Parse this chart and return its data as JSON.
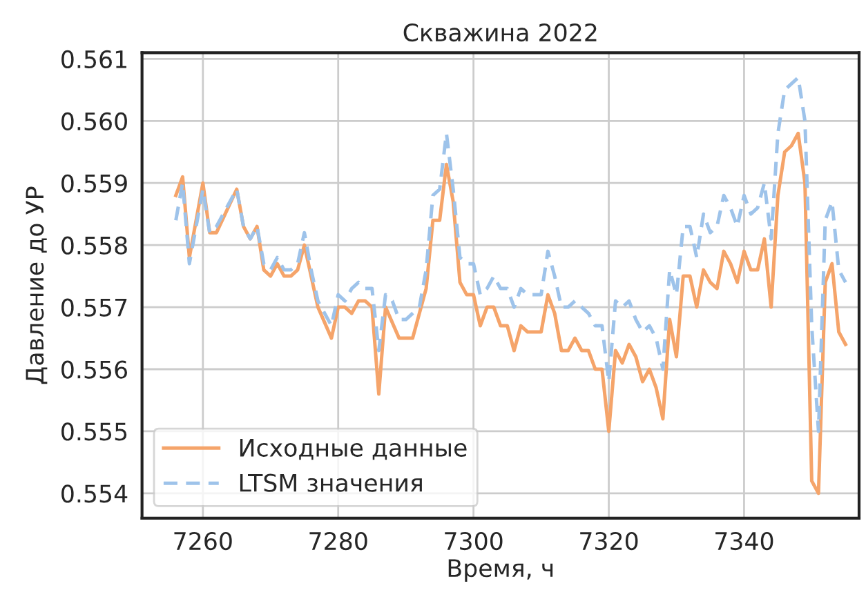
{
  "chart_data": {
    "type": "line",
    "title": "Скважина 2022",
    "xlabel": "Время, ч",
    "ylabel": "Давление до УР",
    "xlim": [
      7251,
      7357
    ],
    "xticks": [
      7260,
      7280,
      7300,
      7320,
      7340
    ],
    "ylim": [
      0.5536,
      0.5611
    ],
    "yticks": [
      0.554,
      0.555,
      0.556,
      0.557,
      0.558,
      0.559,
      {
        "value": 0.56,
        "label": "0.560"
      },
      0.561
    ],
    "grid": true,
    "legend": "bottom left",
    "series": [
      {
        "name": "Исходные данные",
        "color": "#f5a46a",
        "line_style": "solid",
        "x": [
          7256,
          7257,
          7258,
          7260,
          7261,
          7262,
          7265,
          7266,
          7267,
          7268,
          7269,
          7270,
          7271,
          7272,
          7273,
          7274,
          7275,
          7276,
          7277,
          7279,
          7280,
          7281,
          7282,
          7283,
          7284,
          7285,
          7286,
          7287,
          7289,
          7290,
          7291,
          7293,
          7294,
          7295,
          7296,
          7297,
          7298,
          7299,
          7300,
          7301,
          7302,
          7303,
          7304,
          7305,
          7306,
          7307,
          7308,
          7309,
          7310,
          7311,
          7312,
          7313,
          7314,
          7315,
          7316,
          7317,
          7318,
          7319,
          7320,
          7321,
          7322,
          7323,
          7324,
          7325,
          7326,
          7327,
          7328,
          7329,
          7330,
          7331,
          7332,
          7333,
          7334,
          7335,
          7336,
          7337,
          7338,
          7339,
          7340,
          7341,
          7342,
          7343,
          7344,
          7345,
          7346,
          7347,
          7348,
          7349,
          7350,
          7351,
          7352,
          7353,
          7354,
          7355
        ],
        "values": [
          0.5588,
          0.5591,
          0.5578,
          0.559,
          0.5582,
          0.5582,
          0.5589,
          0.5583,
          0.5581,
          0.5583,
          0.5576,
          0.5575,
          0.5577,
          0.5575,
          0.5575,
          0.5576,
          0.558,
          0.5575,
          0.557,
          0.5565,
          0.557,
          0.557,
          0.5569,
          0.5571,
          0.5571,
          0.557,
          0.5556,
          0.557,
          0.5565,
          0.5565,
          0.5565,
          0.5573,
          0.5584,
          0.5584,
          0.5593,
          0.5587,
          0.5574,
          0.5572,
          0.5572,
          0.5567,
          0.557,
          0.557,
          0.5567,
          0.5567,
          0.5563,
          0.5567,
          0.5566,
          0.5566,
          0.5566,
          0.5572,
          0.5569,
          0.5563,
          0.5563,
          0.5565,
          0.5563,
          0.5563,
          0.556,
          0.556,
          0.555,
          0.5563,
          0.5561,
          0.5564,
          0.5562,
          0.5558,
          0.556,
          0.5557,
          0.5552,
          0.5568,
          0.5562,
          0.5575,
          0.5575,
          0.557,
          0.5576,
          0.5574,
          0.5573,
          0.5579,
          0.5577,
          0.5574,
          0.5579,
          0.5576,
          0.5576,
          0.5581,
          0.557,
          0.5588,
          0.5595,
          0.5596,
          0.5598,
          0.559,
          0.5542,
          0.554,
          0.5574,
          0.5577,
          0.5566,
          0.5564
        ]
      },
      {
        "name": "LTSM значения",
        "color": "#9ec3ea",
        "line_style": "dashed",
        "x": [
          7256,
          7257,
          7258,
          7260,
          7261,
          7262,
          7265,
          7266,
          7267,
          7268,
          7269,
          7270,
          7271,
          7272,
          7273,
          7274,
          7275,
          7276,
          7277,
          7279,
          7280,
          7281,
          7282,
          7283,
          7284,
          7285,
          7286,
          7287,
          7288,
          7289,
          7290,
          7291,
          7292,
          7293,
          7294,
          7295,
          7296,
          7297,
          7298,
          7299,
          7300,
          7301,
          7302,
          7303,
          7304,
          7305,
          7306,
          7307,
          7308,
          7309,
          7310,
          7311,
          7312,
          7313,
          7314,
          7315,
          7316,
          7317,
          7318,
          7319,
          7320,
          7321,
          7322,
          7323,
          7324,
          7325,
          7326,
          7327,
          7328,
          7329,
          7330,
          7331,
          7332,
          7333,
          7334,
          7335,
          7336,
          7337,
          7338,
          7339,
          7340,
          7341,
          7342,
          7343,
          7344,
          7345,
          7346,
          7347,
          7348,
          7349,
          7350,
          7351,
          7352,
          7353,
          7354,
          7355
        ],
        "values": [
          0.5584,
          0.559,
          0.5577,
          0.5589,
          0.5582,
          0.5583,
          0.5589,
          0.5583,
          0.5581,
          0.5583,
          0.5577,
          0.5576,
          0.5578,
          0.5576,
          0.5576,
          0.5577,
          0.5582,
          0.5576,
          0.5571,
          0.5567,
          0.5572,
          0.5571,
          0.5573,
          0.5574,
          0.5573,
          0.5573,
          0.5563,
          0.5572,
          0.5571,
          0.5568,
          0.5568,
          0.5569,
          0.557,
          0.5576,
          0.5588,
          0.5589,
          0.5598,
          0.5589,
          0.5578,
          0.5577,
          0.5577,
          0.5572,
          0.5573,
          0.5575,
          0.5573,
          0.5573,
          0.557,
          0.5573,
          0.5572,
          0.5572,
          0.5572,
          0.5579,
          0.5575,
          0.557,
          0.557,
          0.5571,
          0.557,
          0.5569,
          0.5567,
          0.5567,
          0.5558,
          0.5571,
          0.557,
          0.5571,
          0.5568,
          0.5566,
          0.5567,
          0.5565,
          0.556,
          0.5576,
          0.5572,
          0.5583,
          0.5583,
          0.5578,
          0.5585,
          0.5582,
          0.5583,
          0.5588,
          0.5586,
          0.5583,
          0.5588,
          0.5585,
          0.5586,
          0.559,
          0.5581,
          0.5598,
          0.5605,
          0.5606,
          0.5607,
          0.56,
          0.5567,
          0.555,
          0.5584,
          0.5587,
          0.5576,
          0.5574
        ]
      }
    ]
  }
}
